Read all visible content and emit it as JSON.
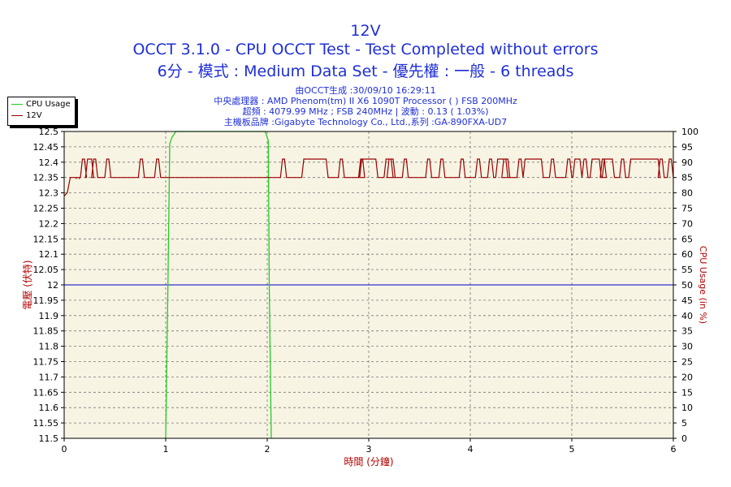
{
  "header": {
    "title": "12V",
    "subtitle1": "OCCT 3.1.0 - CPU OCCT Test - Test Completed without errors",
    "subtitle2": "6分 - 模式 : Medium Data Set - 優先權 : 一般 - 6 threads",
    "info1": "由OCCT生成 :30/09/10 16:29:11",
    "info2": "中央處理器 : AMD Phenom(tm) II X6 1090T Processor (  ) FSB 200MHz",
    "info3": "超頻 : 4079.99 MHz ; FSB 240MHz | 波動 : 0.13 ( 1.03%)",
    "info4": "主機板品牌 :Gigabyte Technology Co., Ltd.,系列 :GA-890FXA-UD7"
  },
  "colors": {
    "cpu": "#22cc22",
    "voltage": "#990000",
    "reference": "#0000cc",
    "plot_bg": "#f8f4e4",
    "axis_text": "#000000",
    "axis_label": "#b00000"
  },
  "chart_data": {
    "type": "line",
    "title": "12V",
    "xlabel": "時間 (分鐘)",
    "ylabel": "電壓 (伏特)",
    "y2label": "CPU Usage (in %)",
    "xlim": [
      0,
      6
    ],
    "ylim": [
      11.5,
      12.5
    ],
    "y2lim": [
      0,
      100
    ],
    "xticks": [
      "0",
      "1",
      "2",
      "3",
      "4",
      "5",
      "6"
    ],
    "yticks": [
      "12.5",
      "12.45",
      "12.4",
      "12.35",
      "12.3",
      "12.25",
      "12.2",
      "12.15",
      "12.1",
      "12.05",
      "12",
      "11.95",
      "11.9",
      "11.85",
      "11.8",
      "11.75",
      "11.7",
      "11.65",
      "11.6",
      "11.55",
      "11.5"
    ],
    "y2ticks": [
      "100",
      "95",
      "90",
      "85",
      "80",
      "75",
      "70",
      "65",
      "60",
      "55",
      "50",
      "45",
      "40",
      "35",
      "30",
      "25",
      "20",
      "15",
      "10",
      "5",
      "0"
    ],
    "grid": true,
    "legend_position": "top-left",
    "reference_line": 12.0,
    "series": [
      {
        "name": "CPU Usage",
        "axis": "right",
        "x": [
          1.0,
          1.02,
          1.04,
          1.06,
          1.1,
          1.2,
          1.5,
          1.8,
          1.98,
          2.01,
          2.02,
          2.04
        ],
        "y": [
          0,
          45,
          96,
          98,
          100,
          100,
          100,
          100,
          100,
          97,
          50,
          0
        ]
      },
      {
        "name": "12V",
        "axis": "left",
        "base": 12.35,
        "start": [
          [
            0,
            12.29
          ],
          [
            0.03,
            12.3
          ],
          [
            0.06,
            12.35
          ]
        ],
        "spike_value": 12.41,
        "spikes": [
          0.19,
          0.3,
          0.43,
          0.76,
          0.92,
          2.16,
          2.73,
          2.93,
          3.21,
          3.36,
          3.59,
          3.72,
          3.92,
          4.08,
          4.2,
          4.34,
          4.49,
          4.81,
          4.97,
          5.13,
          5.31,
          5.5,
          5.88,
          5.97
        ],
        "plateaus": [
          [
            0.23,
            0.27
          ],
          [
            2.36,
            2.58
          ],
          [
            2.93,
            3.07
          ],
          [
            3.17,
            3.24
          ],
          [
            4.27,
            4.37
          ],
          [
            4.54,
            4.7
          ],
          [
            5.03,
            5.08
          ],
          [
            5.2,
            5.27
          ],
          [
            5.32,
            5.4
          ],
          [
            5.58,
            5.85
          ]
        ],
        "singles": [
          0.12,
          0.15
        ]
      }
    ]
  }
}
